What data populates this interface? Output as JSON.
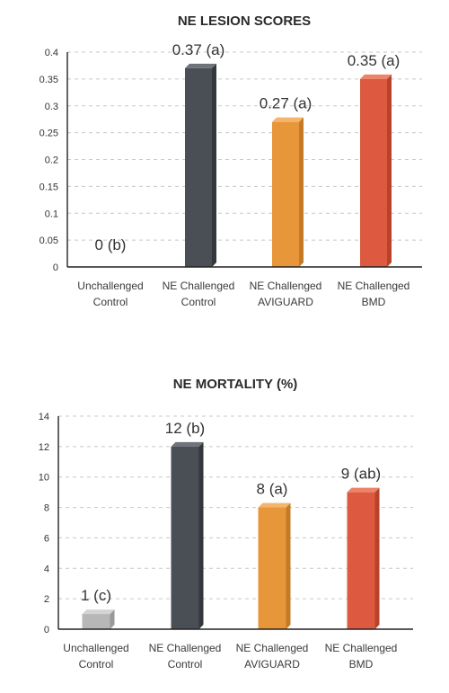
{
  "chart_data": [
    {
      "type": "bar",
      "title": "NE LESION SCORES",
      "categories": [
        [
          "Unchallenged",
          "Control"
        ],
        [
          "NE Challenged",
          "Control"
        ],
        [
          "NE Challenged",
          "AVIGUARD"
        ],
        [
          "NE Challenged",
          "BMD"
        ]
      ],
      "values": [
        0,
        0.37,
        0.27,
        0.35
      ],
      "data_labels": [
        "0 (b)",
        "0.37 (a)",
        "0.27 (a)",
        "0.35 (a)"
      ],
      "ylim": [
        0,
        0.4
      ],
      "yticks": [
        "0",
        "0.05",
        "0.1",
        "0.15",
        "0.2",
        "0.25",
        "0.3",
        "0.35",
        "0.4"
      ],
      "grid": true,
      "xlabel": "",
      "ylabel": ""
    },
    {
      "type": "bar",
      "title": "NE MORTALITY (%)",
      "categories": [
        [
          "Unchallenged",
          "Control"
        ],
        [
          "NE Challenged",
          "Control"
        ],
        [
          "NE Challenged",
          "AVIGUARD"
        ],
        [
          "NE Challenged",
          "BMD"
        ]
      ],
      "values": [
        1,
        12,
        8,
        9
      ],
      "data_labels": [
        "1 (c)",
        "12 (b)",
        "8 (a)",
        "9 (ab)"
      ],
      "ylim": [
        0,
        14
      ],
      "yticks": [
        "0",
        "2",
        "4",
        "6",
        "8",
        "10",
        "12",
        "14"
      ],
      "grid": true,
      "xlabel": "",
      "ylabel": ""
    }
  ],
  "colors": {
    "bars": [
      "#b7b7b7",
      "#4a4e55",
      "#e8963a",
      "#dd5a40"
    ],
    "bar_tops": [
      "#d4d4d4",
      "#6f737a",
      "#f2b56b",
      "#ec8468"
    ],
    "bar_sides": [
      "#999999",
      "#34373c",
      "#c47a26",
      "#b8432d"
    ]
  }
}
